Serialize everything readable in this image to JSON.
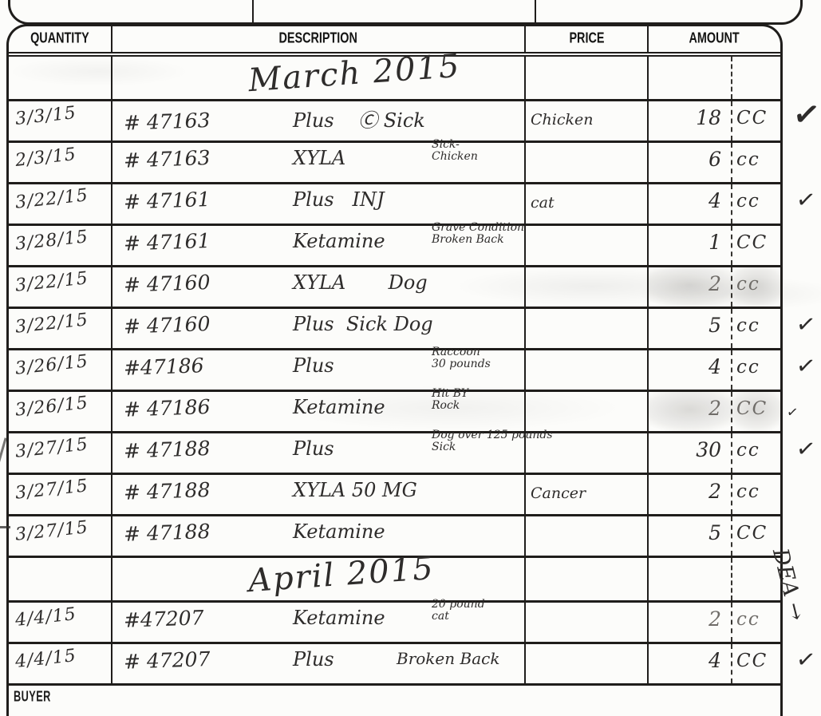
{
  "colors": {
    "ink": "#2e2c2b",
    "line": "#1f1d1b",
    "faded": "#6f6c68",
    "paper": "#fcfcfa"
  },
  "table": {
    "headers": [
      {
        "key": "quantity",
        "label": "QUANTITY"
      },
      {
        "key": "description",
        "label": "DESCRIPTION"
      },
      {
        "key": "price",
        "label": "PRICE"
      },
      {
        "key": "amount",
        "label": "AMOUNT"
      }
    ],
    "rows": [
      {
        "type": "section",
        "title": "March 2015"
      },
      {
        "type": "entry",
        "date": "3/3/15",
        "ref": "# 47163",
        "desc": "Plus    Ⓒ Sick",
        "price_note": "Chicken",
        "amount": "18",
        "unit": "CC",
        "check": "big"
      },
      {
        "type": "entry",
        "date": "2/3/15",
        "ref": "# 47163",
        "desc": "XYLA",
        "note": [
          "Sick-",
          "Chicken"
        ],
        "amount": "6",
        "unit": "cc"
      },
      {
        "type": "entry",
        "date": "3/22/15",
        "ref": "# 47161",
        "desc": "Plus   INJ",
        "price_note": "cat",
        "amount": "4",
        "unit": "cc",
        "check": true
      },
      {
        "type": "entry",
        "date": "3/28/15",
        "ref": "# 47161",
        "desc": "Ketamine",
        "note": [
          "Grave Condition",
          "Broken Back"
        ],
        "amount": "1",
        "unit": "CC"
      },
      {
        "type": "entry",
        "date": "3/22/15",
        "ref": "# 47160",
        "desc": "XYLA       Dog",
        "amount": "2",
        "unit": "cc",
        "faded": true,
        "smudge": true
      },
      {
        "type": "entry",
        "date": "3/22/15",
        "ref": "# 47160",
        "desc": "Plus  Sick Dog",
        "amount": "5",
        "unit": "cc",
        "check": true
      },
      {
        "type": "entry",
        "date": "3/26/15",
        "ref": "#47186",
        "desc": "Plus",
        "note": [
          "Raccoon",
          "30 pounds"
        ],
        "amount": "4",
        "unit": "cc",
        "check": true
      },
      {
        "type": "entry",
        "date": "3/26/15",
        "ref": "# 47186",
        "desc": "Ketamine",
        "note": [
          "Hit BY",
          "Rock"
        ],
        "amount": "2",
        "unit": "CC",
        "check": "small",
        "faded": true,
        "smudge": true
      },
      {
        "type": "entry",
        "date": "3/27/15",
        "ref": "# 47188",
        "desc": "Plus",
        "note": [
          "Dog over 125 pounds",
          "Sick"
        ],
        "amount": "30",
        "unit": "cc",
        "check": true
      },
      {
        "type": "entry",
        "date": "3/27/15",
        "ref": "# 47188",
        "desc": "XYLA 50 MG",
        "price_note": "Cancer",
        "amount": "2",
        "unit": "cc"
      },
      {
        "type": "entry",
        "date": "3/27/15",
        "ref": "# 47188",
        "desc": "Ketamine",
        "amount": "5",
        "unit": "CC"
      },
      {
        "type": "section",
        "title": "April 2015"
      },
      {
        "type": "entry",
        "date": "4/4/15",
        "ref": "#47207",
        "desc": "Ketamine",
        "note": [
          "20 pound",
          "cat"
        ],
        "amount": "2",
        "unit": "cc",
        "faded": true
      },
      {
        "type": "entry",
        "date": "4/4/15",
        "ref": "# 47207",
        "desc": "Plus",
        "note": [
          "Broken Back"
        ],
        "note_big": true,
        "amount": "4",
        "unit": "CC",
        "check": true
      }
    ]
  },
  "footer": {
    "buyer_label": "BUYER"
  },
  "annotations": {
    "dea_note": "DEA →",
    "check_glyph": "✓"
  }
}
